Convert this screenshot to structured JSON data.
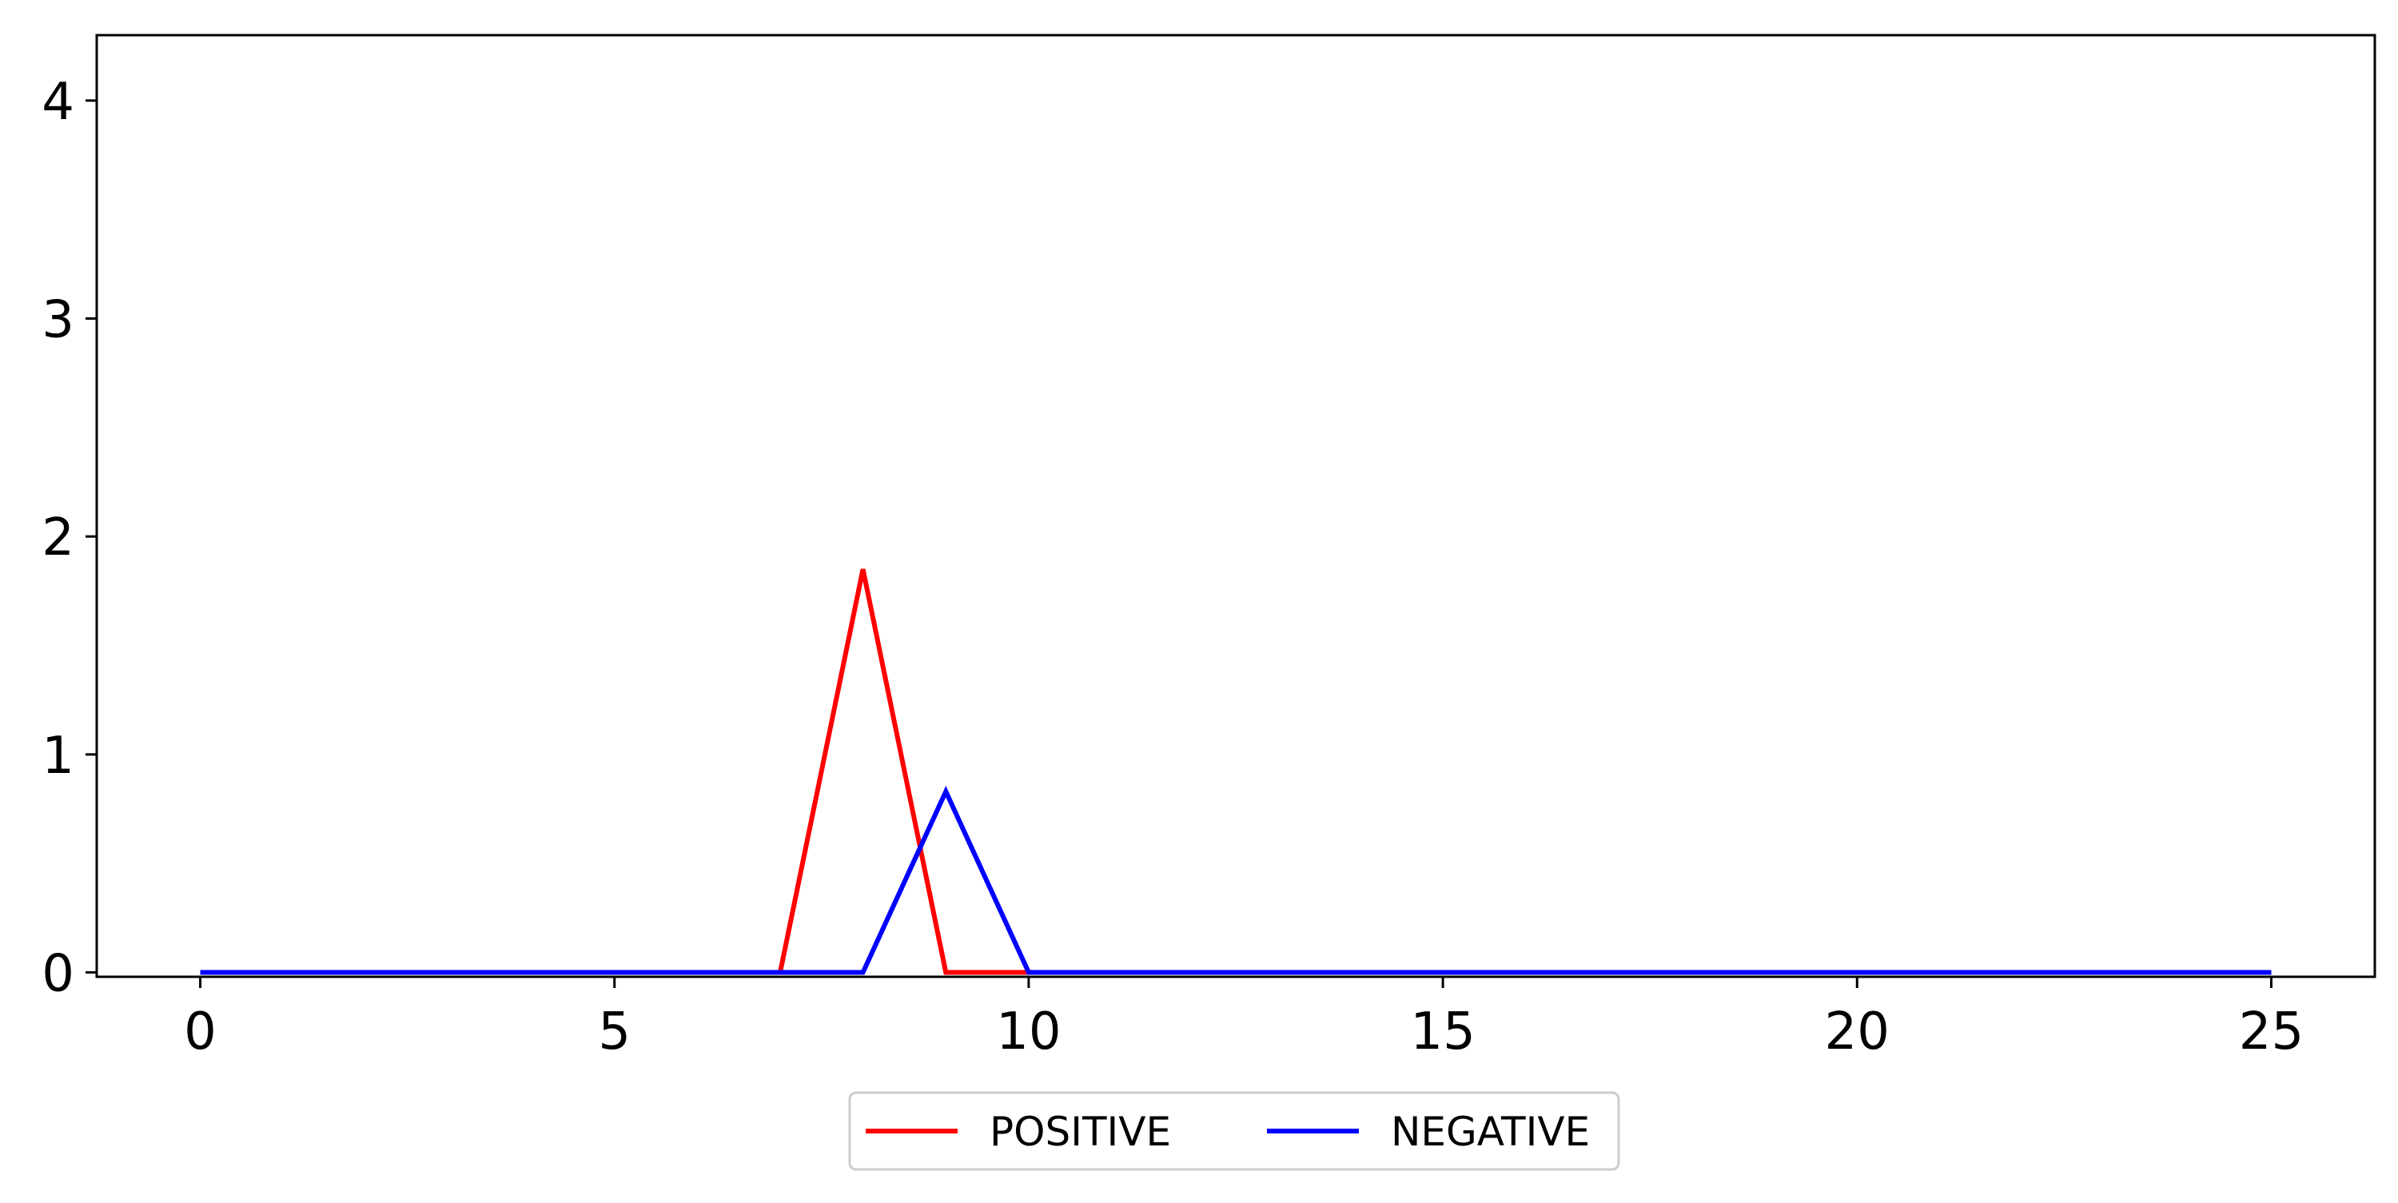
{
  "chart_data": {
    "type": "line",
    "title": "",
    "xlabel": "",
    "ylabel": "",
    "xlim": [
      -1.25,
      26.25
    ],
    "ylim": [
      -0.02,
      4.3
    ],
    "x_ticks": [
      0,
      5,
      10,
      15,
      20,
      25
    ],
    "y_ticks": [
      0,
      1,
      2,
      3,
      4
    ],
    "grid": false,
    "legend_position": "bottom-center",
    "x": [
      0,
      1,
      2,
      3,
      4,
      5,
      6,
      7,
      8,
      9,
      10,
      11,
      12,
      13,
      14,
      15,
      16,
      17,
      18,
      19,
      20,
      21,
      22,
      23,
      24,
      25
    ],
    "series": [
      {
        "name": "POSITIVE",
        "color": "#ff0000",
        "values": [
          0,
          0,
          0,
          0,
          0,
          0,
          0,
          0,
          1.85,
          0,
          0,
          0,
          0,
          0,
          0,
          0,
          0,
          0,
          0,
          0,
          0,
          0,
          0,
          0,
          0,
          0
        ]
      },
      {
        "name": "NEGATIVE",
        "color": "#0000ff",
        "values": [
          0,
          0,
          0,
          0,
          0,
          0,
          0,
          0,
          0,
          0.83,
          0,
          0,
          0,
          0,
          0,
          0,
          0,
          0,
          0,
          0,
          0,
          0,
          0,
          0,
          0,
          0
        ]
      }
    ]
  }
}
